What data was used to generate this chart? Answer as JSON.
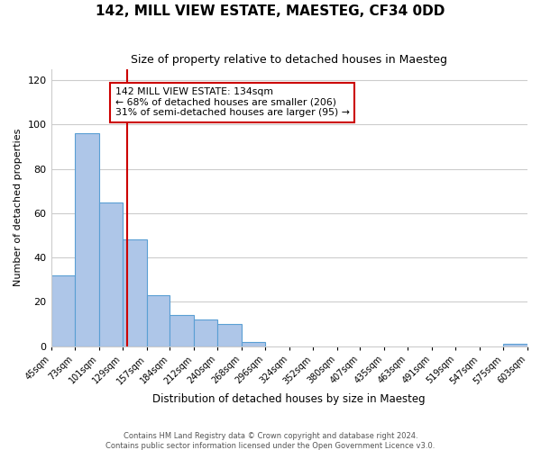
{
  "title": "142, MILL VIEW ESTATE, MAESTEG, CF34 0DD",
  "subtitle": "Size of property relative to detached houses in Maesteg",
  "xlabel": "Distribution of detached houses by size in Maesteg",
  "ylabel": "Number of detached properties",
  "bar_edges": [
    45,
    73,
    101,
    129,
    157,
    184,
    212,
    240,
    268,
    296,
    324,
    352,
    380,
    407,
    435,
    463,
    491,
    519,
    547,
    575,
    603
  ],
  "bar_heights": [
    32,
    96,
    65,
    48,
    23,
    14,
    12,
    10,
    2,
    0,
    0,
    0,
    0,
    0,
    0,
    0,
    0,
    0,
    0,
    1
  ],
  "bar_color": "#aec6e8",
  "bar_edge_color": "#5a9fd4",
  "property_line_x": 134,
  "ylim": [
    0,
    125
  ],
  "yticks": [
    0,
    20,
    40,
    60,
    80,
    100,
    120
  ],
  "xtick_labels": [
    "45sqm",
    "73sqm",
    "101sqm",
    "129sqm",
    "157sqm",
    "184sqm",
    "212sqm",
    "240sqm",
    "268sqm",
    "296sqm",
    "324sqm",
    "352sqm",
    "380sqm",
    "407sqm",
    "435sqm",
    "463sqm",
    "491sqm",
    "519sqm",
    "547sqm",
    "575sqm",
    "603sqm"
  ],
  "annotation_title": "142 MILL VIEW ESTATE: 134sqm",
  "annotation_line1": "← 68% of detached houses are smaller (206)",
  "annotation_line2": "31% of semi-detached houses are larger (95) →",
  "red_line_color": "#cc0000",
  "grid_color": "#cccccc",
  "footer1": "Contains HM Land Registry data © Crown copyright and database right 2024.",
  "footer2": "Contains public sector information licensed under the Open Government Licence v3.0."
}
